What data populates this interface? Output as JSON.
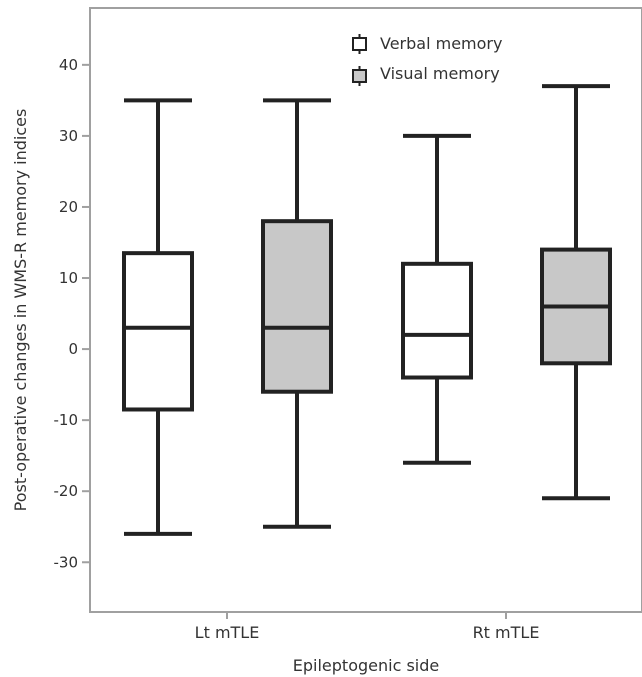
{
  "chart_data": {
    "type": "box",
    "xlabel": "Epileptogenic side",
    "ylabel": "Post-operative changes in WMS-R memory indices",
    "ylim": [
      -37,
      48
    ],
    "yticks": [
      40,
      30,
      20,
      10,
      0,
      -10,
      -20,
      -30
    ],
    "categories": [
      "Lt mTLE",
      "Rt mTLE"
    ],
    "series": [
      {
        "name": "Verbal memory",
        "color": "#ffffff",
        "boxes": [
          {
            "min": -26,
            "q1": -8.5,
            "median": 3,
            "q3": 13.5,
            "max": 35
          },
          {
            "min": -16,
            "q1": -4,
            "median": 2,
            "q3": 12,
            "max": 30
          }
        ]
      },
      {
        "name": "Visual memory",
        "color": "#c8c8c8",
        "boxes": [
          {
            "min": -25,
            "q1": -6,
            "median": 3,
            "q3": 18,
            "max": 35
          },
          {
            "min": -21,
            "q1": -2,
            "median": 6,
            "q3": 14,
            "max": 37
          }
        ]
      }
    ],
    "legend_position": "top-right",
    "grid": false,
    "axis_color": "#a0a0a0",
    "box_stroke": "#222222"
  }
}
